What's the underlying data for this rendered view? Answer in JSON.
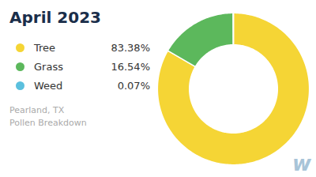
{
  "chart_data": {
    "type": "pie",
    "title": "April 2023",
    "categories": [
      "Tree",
      "Grass",
      "Weed"
    ],
    "values": [
      83.38,
      16.54,
      0.07
    ],
    "value_labels": [
      "83.38%",
      "16.54%",
      "0.07%"
    ],
    "colors": [
      "#f5d535",
      "#5cb85c",
      "#5bc0de"
    ],
    "legend": "left",
    "annotations": [
      "Pearland, TX",
      "Pollen Breakdown",
      "w"
    ]
  }
}
